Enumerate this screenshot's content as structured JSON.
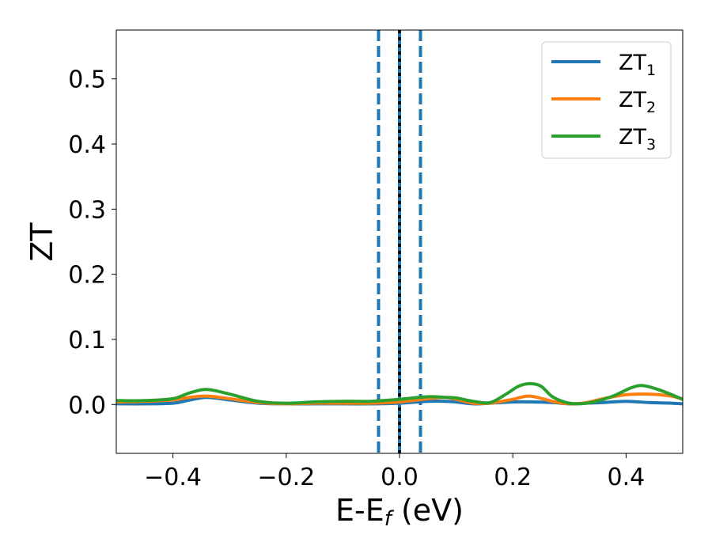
{
  "chart_data": {
    "type": "line",
    "xlabel": "E-E",
    "xlabel_sub": "f",
    "xlabel_unit": " (eV)",
    "ylabel": "ZT",
    "xlim": [
      -0.5,
      0.5
    ],
    "ylim": [
      -0.075,
      0.575
    ],
    "xticks": [
      -0.4,
      -0.2,
      0.0,
      0.2,
      0.4
    ],
    "xtick_labels": [
      "−0.4",
      "−0.2",
      "0.0",
      "0.2",
      "0.4"
    ],
    "yticks": [
      0.0,
      0.1,
      0.2,
      0.3,
      0.4,
      0.5
    ],
    "ytick_labels": [
      "0.0",
      "0.1",
      "0.2",
      "0.3",
      "0.4",
      "0.5"
    ],
    "grid": false,
    "legend": {
      "placement": "top-right"
    },
    "vertical_lines": [
      {
        "x": -0.037,
        "style": "dashed",
        "color": "#1f77b4"
      },
      {
        "x": 0.0,
        "style": "solid",
        "color": "#1f77b4"
      },
      {
        "x": 0.0,
        "style": "dotted",
        "color": "#000000"
      },
      {
        "x": 0.037,
        "style": "dashed",
        "color": "#1f77b4"
      }
    ],
    "series": [
      {
        "name": "ZT",
        "name_sub": "1",
        "color": "#1f77b4",
        "x": [
          -0.5,
          -0.45,
          -0.4,
          -0.37,
          -0.34,
          -0.3,
          -0.25,
          -0.2,
          -0.15,
          -0.1,
          -0.05,
          0.0,
          0.05,
          0.08,
          0.1,
          0.13,
          0.16,
          0.2,
          0.23,
          0.27,
          0.3,
          0.33,
          0.36,
          0.4,
          0.44,
          0.48,
          0.5
        ],
        "y": [
          0.001,
          0.001,
          0.002,
          0.007,
          0.011,
          0.007,
          0.002,
          0.001,
          0.001,
          0.001,
          0.001,
          0.002,
          0.005,
          0.005,
          0.004,
          0.001,
          0.002,
          0.004,
          0.004,
          0.003,
          0.001,
          0.002,
          0.003,
          0.005,
          0.003,
          0.002,
          0.001
        ]
      },
      {
        "name": "ZT",
        "name_sub": "2",
        "color": "#ff7f0e",
        "x": [
          -0.5,
          -0.45,
          -0.4,
          -0.37,
          -0.34,
          -0.3,
          -0.25,
          -0.2,
          -0.15,
          -0.1,
          -0.05,
          0.0,
          0.05,
          0.08,
          0.1,
          0.13,
          0.16,
          0.2,
          0.23,
          0.27,
          0.3,
          0.33,
          0.36,
          0.4,
          0.44,
          0.48,
          0.5
        ],
        "y": [
          0.004,
          0.005,
          0.007,
          0.011,
          0.013,
          0.009,
          0.003,
          0.001,
          0.002,
          0.002,
          0.002,
          0.004,
          0.009,
          0.011,
          0.008,
          0.002,
          0.002,
          0.008,
          0.013,
          0.005,
          0.001,
          0.003,
          0.009,
          0.015,
          0.016,
          0.013,
          0.008
        ]
      },
      {
        "name": "ZT",
        "name_sub": "3",
        "color": "#2ca02c",
        "x": [
          -0.5,
          -0.45,
          -0.4,
          -0.37,
          -0.34,
          -0.3,
          -0.25,
          -0.2,
          -0.15,
          -0.1,
          -0.05,
          0.0,
          0.05,
          0.08,
          0.1,
          0.13,
          0.16,
          0.19,
          0.21,
          0.23,
          0.25,
          0.27,
          0.3,
          0.33,
          0.36,
          0.38,
          0.41,
          0.43,
          0.46,
          0.5
        ],
        "y": [
          0.006,
          0.006,
          0.009,
          0.018,
          0.023,
          0.016,
          0.005,
          0.002,
          0.004,
          0.005,
          0.005,
          0.008,
          0.012,
          0.011,
          0.01,
          0.005,
          0.003,
          0.017,
          0.028,
          0.032,
          0.028,
          0.012,
          0.002,
          0.002,
          0.008,
          0.014,
          0.026,
          0.029,
          0.022,
          0.008
        ]
      }
    ]
  }
}
